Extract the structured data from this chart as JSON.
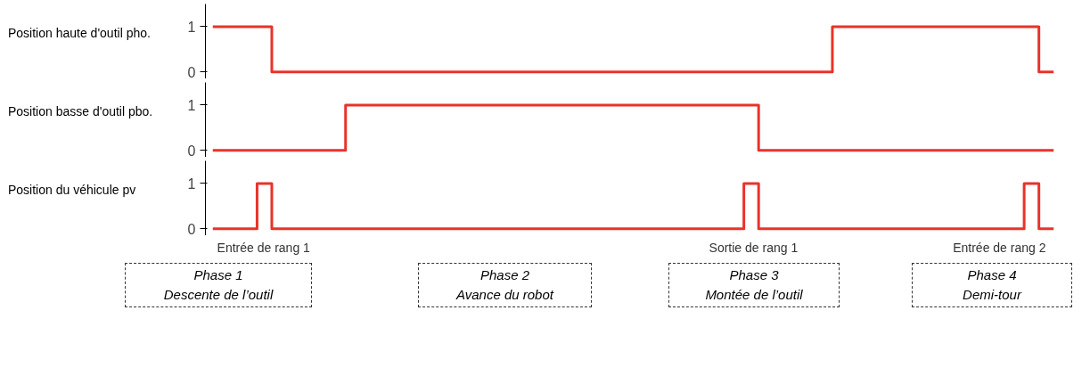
{
  "chart_data": [
    {
      "type": "step",
      "ylabel": "Position haute d'outil pho.",
      "categories": [
        null,
        null,
        null,
        null,
        null,
        null,
        null,
        null,
        null,
        null,
        null,
        null,
        null,
        null,
        null,
        null,
        null,
        null,
        null,
        null,
        null,
        null,
        null,
        null,
        null,
        null,
        null,
        null,
        null,
        null,
        null,
        null,
        null,
        null,
        null,
        null,
        null,
        null,
        null,
        null,
        null,
        null,
        null,
        null,
        null,
        null,
        null,
        null,
        null,
        null,
        null,
        null,
        null,
        null,
        null,
        null,
        null,
        null
      ],
      "series": [
        {
          "color": "#e8332a",
          "values": [
            1,
            1,
            1,
            1,
            0,
            0,
            0,
            0,
            0,
            0,
            0,
            0,
            0,
            0,
            0,
            0,
            0,
            0,
            0,
            0,
            0,
            0,
            0,
            0,
            0,
            0,
            0,
            0,
            0,
            0,
            0,
            0,
            0,
            0,
            0,
            0,
            0,
            0,
            0,
            0,
            0,
            0,
            1,
            1,
            1,
            1,
            1,
            1,
            1,
            1,
            1,
            1,
            1,
            1,
            1,
            1,
            0,
            0
          ]
        }
      ],
      "ylim": [
        -0.15,
        1.5
      ],
      "yticks": [
        0,
        1
      ],
      "tick_labels": "y",
      "grid": false
    },
    {
      "type": "step",
      "ylabel": "Position basse d'outil pbo.",
      "categories": [
        null,
        null,
        null,
        null,
        null,
        null,
        null,
        null,
        null,
        null,
        null,
        null,
        null,
        null,
        null,
        null,
        null,
        null,
        null,
        null,
        null,
        null,
        null,
        null,
        null,
        null,
        null,
        null,
        null,
        null,
        null,
        null,
        null,
        null,
        null,
        null,
        null,
        null,
        null,
        null,
        null,
        null,
        null,
        null,
        null,
        null,
        null,
        null,
        null,
        null,
        null,
        null,
        null,
        null,
        null,
        null,
        null,
        null
      ],
      "series": [
        {
          "color": "#e8332a",
          "values": [
            0,
            0,
            0,
            0,
            0,
            0,
            0,
            0,
            0,
            1,
            1,
            1,
            1,
            1,
            1,
            1,
            1,
            1,
            1,
            1,
            1,
            1,
            1,
            1,
            1,
            1,
            1,
            1,
            1,
            1,
            1,
            1,
            1,
            1,
            1,
            1,
            1,
            0,
            0,
            0,
            0,
            0,
            0,
            0,
            0,
            0,
            0,
            0,
            0,
            0,
            0,
            0,
            0,
            0,
            0,
            0,
            0,
            0
          ]
        }
      ],
      "ylim": [
        -0.15,
        1.5
      ],
      "yticks": [
        0,
        1
      ],
      "tick_labels": "y",
      "grid": false
    },
    {
      "type": "step",
      "ylabel": "Position du véhicule pv",
      "categories": [
        null,
        null,
        null,
        null,
        null,
        null,
        null,
        null,
        null,
        null,
        null,
        null,
        null,
        null,
        null,
        null,
        null,
        null,
        null,
        null,
        null,
        null,
        null,
        null,
        null,
        null,
        null,
        null,
        null,
        null,
        null,
        null,
        null,
        null,
        null,
        null,
        null,
        null,
        null,
        null,
        null,
        null,
        null,
        null,
        null,
        null,
        null,
        null,
        null,
        null,
        null,
        null,
        null,
        null,
        null,
        null,
        null,
        null
      ],
      "series": [
        {
          "color": "#e8332a",
          "values": [
            0,
            0,
            0,
            1,
            0,
            0,
            0,
            0,
            0,
            0,
            0,
            0,
            0,
            0,
            0,
            0,
            0,
            0,
            0,
            0,
            0,
            0,
            0,
            0,
            0,
            0,
            0,
            0,
            0,
            0,
            0,
            0,
            0,
            0,
            0,
            0,
            1,
            0,
            0,
            0,
            0,
            0,
            0,
            0,
            0,
            0,
            0,
            0,
            0,
            0,
            0,
            0,
            0,
            0,
            0,
            1,
            0,
            0
          ]
        }
      ],
      "ylim": [
        -0.15,
        1.5
      ],
      "yticks": [
        0,
        1
      ],
      "tick_labels": "y",
      "grid": false,
      "annotations": [
        "Entrée de rang 1",
        "Sortie de rang 1",
        "Entrée de rang 2"
      ]
    },
    {
      "type": "other",
      "annotations": [
        "Phase 1\nDescente de l’outil",
        "Phase 2\nAvance du robot",
        "Phase 3\nMontée de l’outil",
        "Phase 4\nDemi-tour"
      ]
    }
  ]
}
